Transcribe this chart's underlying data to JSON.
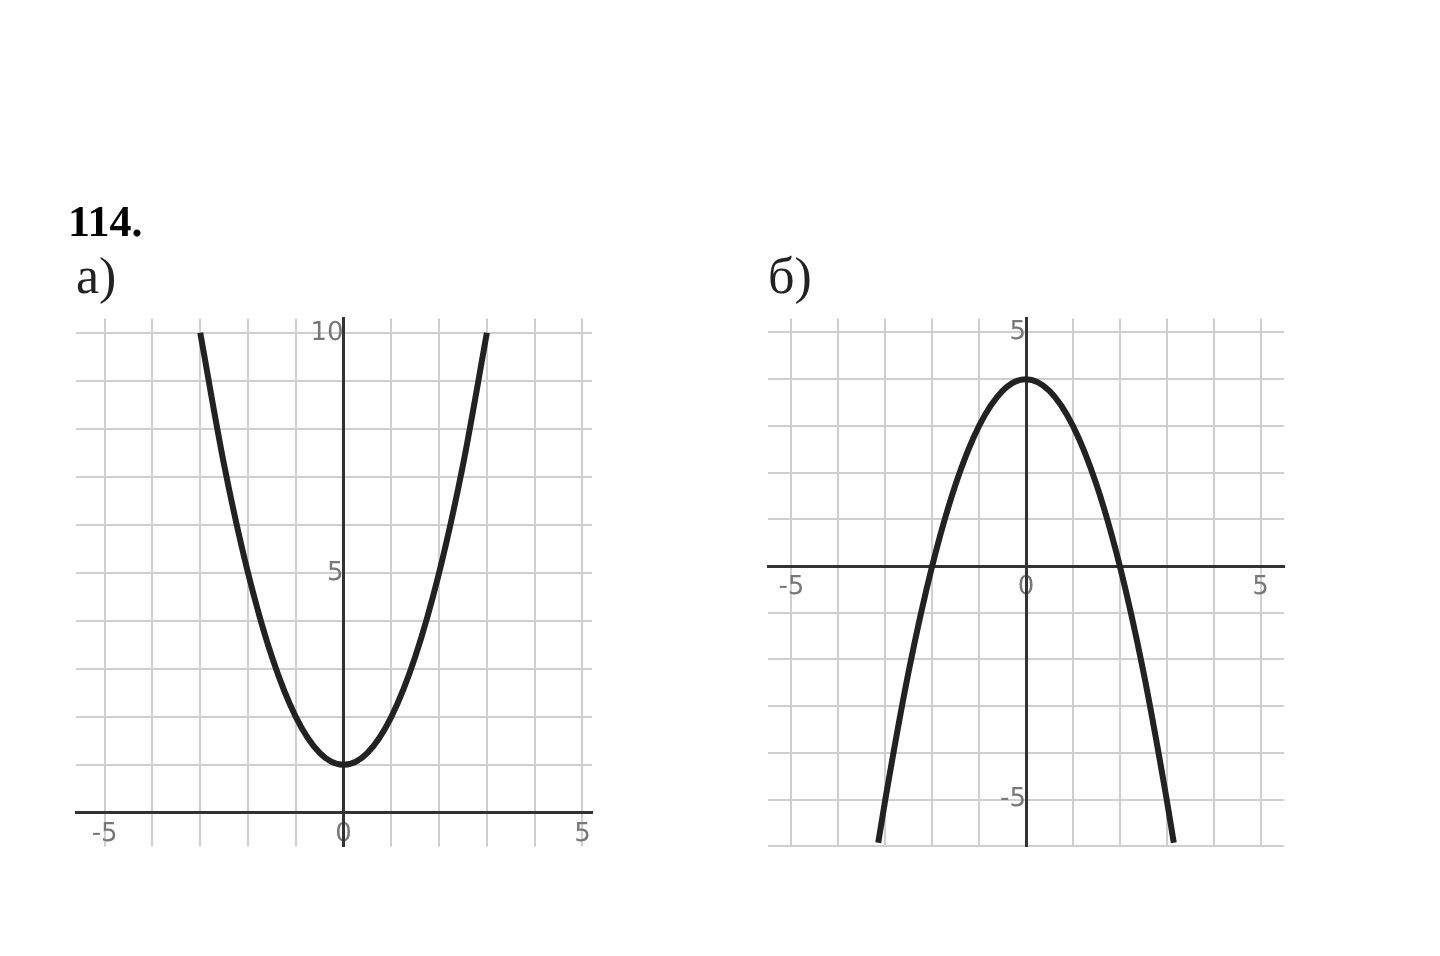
{
  "chart_data": [
    {
      "type": "line",
      "title": "а)",
      "annotations": [
        "114."
      ],
      "x": [
        -3,
        -2.5,
        -2,
        -1.5,
        -1,
        -0.5,
        0,
        0.5,
        1,
        1.5,
        2,
        2.5,
        3
      ],
      "values": [
        10,
        7.25,
        5,
        3.25,
        2,
        1.25,
        1,
        1.25,
        2,
        3.25,
        5,
        7.25,
        10
      ],
      "color": "#222222",
      "xlim": [
        -5.6,
        5.2
      ],
      "ylim": [
        -0.7,
        10.3
      ],
      "xticks": [
        -5,
        {
          "value": -4,
          "label": null
        },
        {
          "value": -3,
          "label": null
        },
        {
          "value": -2,
          "label": null
        },
        {
          "value": -1,
          "label": null
        },
        0,
        {
          "value": 1,
          "label": null
        },
        {
          "value": 2,
          "label": null
        },
        {
          "value": 3,
          "label": null
        },
        {
          "value": 4,
          "label": null
        },
        5
      ],
      "yticks": [
        {
          "value": 0,
          "label": null
        },
        {
          "value": 1,
          "label": null
        },
        {
          "value": 2,
          "label": null
        },
        {
          "value": 3,
          "label": null
        },
        {
          "value": 4,
          "label": null
        },
        5,
        {
          "value": 6,
          "label": null
        },
        {
          "value": 7,
          "label": null
        },
        {
          "value": 8,
          "label": null
        },
        {
          "value": 9,
          "label": null
        },
        10
      ],
      "grid": true,
      "marker": "none"
    },
    {
      "type": "line",
      "title": "б)",
      "x": [
        -3.15,
        -3,
        -2.5,
        -2,
        -1.5,
        -1,
        -0.5,
        0,
        0.5,
        1,
        1.5,
        2,
        2.5,
        3,
        3.15
      ],
      "values": [
        -5.92,
        -5,
        -2.25,
        0,
        1.75,
        3,
        3.75,
        4,
        3.75,
        3,
        1.75,
        0,
        -2.25,
        -5,
        -5.92
      ],
      "color": "#222222",
      "xlim": [
        -5.5,
        5.5
      ],
      "ylim": [
        -6,
        5.3
      ],
      "xticks": [
        -5,
        {
          "value": -4,
          "label": null
        },
        {
          "value": -3,
          "label": null
        },
        {
          "value": -2,
          "label": null
        },
        {
          "value": -1,
          "label": null
        },
        0,
        {
          "value": 1,
          "label": null
        },
        {
          "value": 2,
          "label": null
        },
        {
          "value": 3,
          "label": null
        },
        {
          "value": 4,
          "label": null
        },
        5
      ],
      "yticks": [
        {
          "value": -6,
          "label": null
        },
        -5,
        {
          "value": -4,
          "label": null
        },
        {
          "value": -3,
          "label": null
        },
        {
          "value": -2,
          "label": null
        },
        {
          "value": -1,
          "label": null
        },
        {
          "value": 0,
          "label": null
        },
        {
          "value": 1,
          "label": null
        },
        {
          "value": 2,
          "label": null
        },
        {
          "value": 3,
          "label": null
        },
        {
          "value": 4,
          "label": null
        },
        5
      ],
      "grid": true,
      "marker": "none"
    }
  ]
}
